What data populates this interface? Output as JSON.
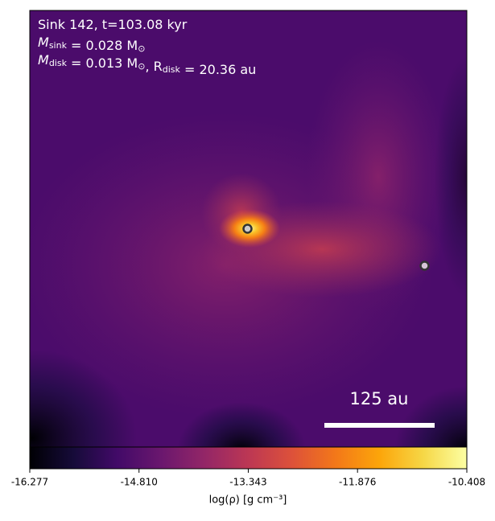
{
  "chart_data": {
    "type": "image",
    "annotation_lines": [
      [
        {
          "text": "Sink 142, t=103.08 kyr"
        }
      ],
      [
        {
          "text": "M"
        },
        {
          "sub": "sink"
        },
        {
          "text": " = 0.028 M"
        },
        {
          "sub": "⊙"
        }
      ],
      [
        {
          "text": "M"
        },
        {
          "sub": "disk"
        },
        {
          "text": " = 0.013 M"
        },
        {
          "sub": "⊙"
        },
        {
          "text": ", R"
        },
        {
          "sub": "disk"
        },
        {
          "text": " = 20.36 au"
        }
      ]
    ],
    "scale_bar_label": "125 au",
    "colorbar": {
      "label": "log(ρ) [g cm⁻³]",
      "cmap": "inferno",
      "xlim": [
        -16.277,
        -10.408
      ],
      "xticks": [
        -16.277,
        {
          "value": -14.81,
          "label": "-14.810"
        },
        -13.343,
        -11.876,
        -10.408
      ]
    }
  }
}
